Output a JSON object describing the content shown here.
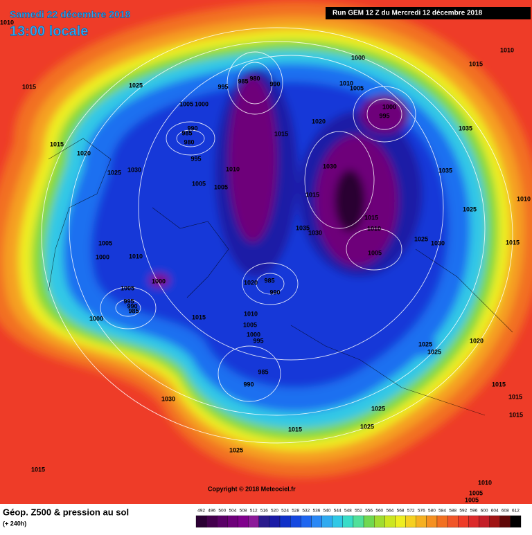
{
  "header": {
    "date": "Samedi 22 décembre 2018",
    "time": "13:00 locale",
    "run": "Run GEM 12 Z du Mercredi 12 décembre 2018"
  },
  "map": {
    "isobar_labels": [
      1010,
      1000,
      1010,
      1015,
      1015,
      1025,
      995,
      985,
      980,
      990,
      1010,
      1005,
      1000,
      995,
      1005,
      1000,
      990,
      985,
      980,
      1020,
      1035,
      1015,
      1015,
      1020,
      995,
      1010,
      1030,
      1035,
      1025,
      1030,
      1005,
      1005,
      1015,
      1010,
      1025,
      1015,
      1035,
      1030,
      1010,
      1025,
      1030,
      1015,
      1005,
      1000,
      1010,
      1005,
      1000,
      1020,
      985,
      990,
      1005,
      995,
      990,
      985,
      1000,
      1010,
      1005,
      1015,
      1000,
      995,
      1025,
      1025,
      1020,
      985,
      990,
      1015,
      1030,
      1015,
      1025,
      1015,
      1025,
      1015,
      1025,
      1015,
      1010,
      1005,
      1005
    ],
    "copyright": "Copyright © 2018 Meteociel.fr"
  },
  "footer": {
    "title": "Géop. Z500 & pression au sol",
    "lead": "(+ 240h)"
  },
  "legend": {
    "levels": [
      492,
      496,
      500,
      504,
      508,
      512,
      516,
      520,
      524,
      528,
      532,
      536,
      540,
      544,
      548,
      552,
      556,
      560,
      564,
      568,
      572,
      576,
      580,
      584,
      588,
      592,
      596,
      600,
      604,
      608,
      612
    ],
    "colors": [
      "#2b0033",
      "#44004d",
      "#5a0066",
      "#6e007a",
      "#80008c",
      "#8c1a99",
      "#2a1a8c",
      "#1a1aa6",
      "#1030c8",
      "#1448e0",
      "#1e66f0",
      "#2a88f5",
      "#30aaf0",
      "#30c8e6",
      "#38dcc8",
      "#50e09a",
      "#70d850",
      "#a0dc30",
      "#cce620",
      "#eeee20",
      "#f5d020",
      "#f5b020",
      "#f59020",
      "#f27020",
      "#f05528",
      "#ee3c28",
      "#dc2a2a",
      "#c41e28",
      "#a01414",
      "#600808",
      "#000000"
    ]
  }
}
